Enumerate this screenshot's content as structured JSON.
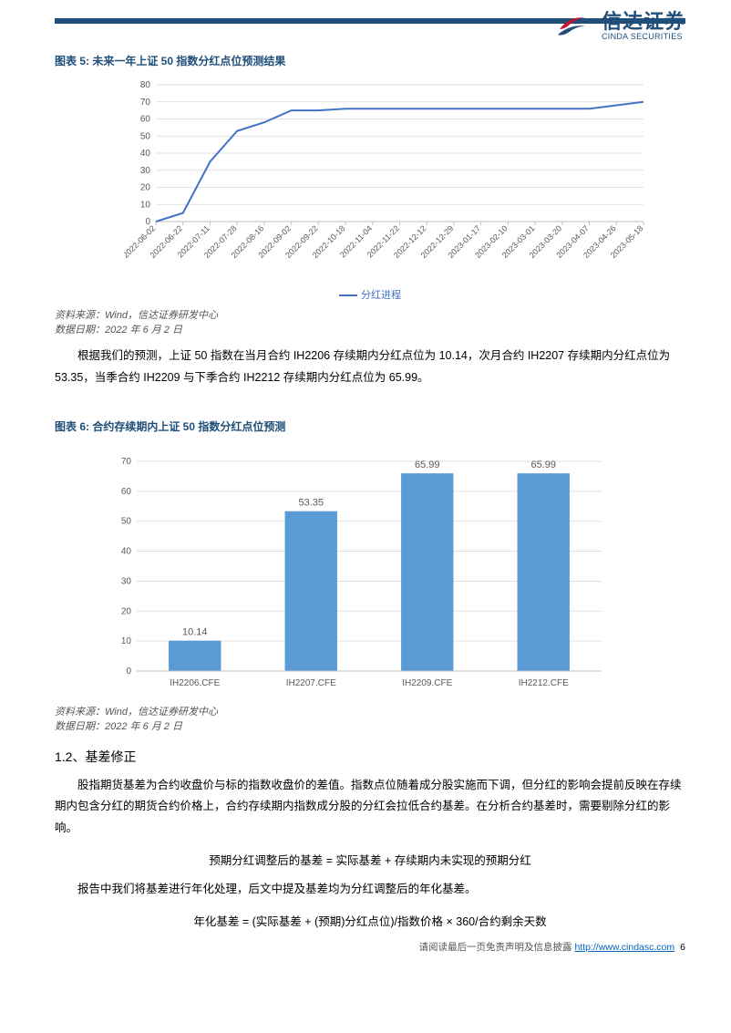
{
  "brand": {
    "name": "信达证券",
    "sub": "CINDA SECURITIES"
  },
  "fig5": {
    "title_prefix": "图表 5: ",
    "title": "未来一年上证 50 指数分红点位预测结果",
    "type": "line",
    "x_labels": [
      "2022-06-02",
      "2022-06-22",
      "2022-07-11",
      "2022-07-28",
      "2022-08-16",
      "2022-09-02",
      "2022-09-22",
      "2022-10-18",
      "2022-11-04",
      "2022-11-22",
      "2022-12-12",
      "2022-12-29",
      "2023-01-17",
      "2023-02-10",
      "2023-03-01",
      "2023-03-20",
      "2023-04-07",
      "2023-04-26",
      "2023-05-18"
    ],
    "values": [
      0,
      5,
      35,
      53,
      58,
      65,
      65,
      66,
      66,
      66,
      66,
      66,
      66,
      66,
      66,
      66,
      66,
      68,
      70
    ],
    "ylim": [
      0,
      80
    ],
    "ytick_step": 10,
    "line_color": "#4472c4",
    "grid_color": "#d9d9d9",
    "axis_color": "#bfbfbf",
    "tick_color": "#595959",
    "label_fontsize": 10,
    "legend": "分红进程",
    "source": "资料来源：Wind，信达证券研发中心",
    "date": "数据日期：2022 年 6 月 2 日"
  },
  "para1": "根据我们的预测，上证 50 指数在当月合约 IH2206 存续期内分红点位为 10.14，次月合约 IH2207 存续期内分红点位为 53.35，当季合约 IH2209 与下季合约 IH2212 存续期内分红点位为 65.99。",
  "fig6": {
    "title_prefix": "图表 6: ",
    "title": "合约存续期内上证 50 指数分红点位预测",
    "type": "bar",
    "categories": [
      "IH2206.CFE",
      "IH2207.CFE",
      "IH2209.CFE",
      "IH2212.CFE"
    ],
    "values": [
      10.14,
      53.35,
      65.99,
      65.99
    ],
    "value_labels": [
      "10.14",
      "53.35",
      "65.99",
      "65.99"
    ],
    "bar_color": "#5b9bd5",
    "label_color": "#595959",
    "ylim": [
      0,
      70
    ],
    "ytick_step": 10,
    "bar_width": 0.45,
    "grid_color": "#d9d9d9",
    "axis_color": "#bfbfbf",
    "source": "资料来源：Wind，信达证券研发中心",
    "date": "数据日期：2022 年 6 月 2 日"
  },
  "section": {
    "num": "1.2、",
    "title": "基差修正"
  },
  "para2": "股指期货基差为合约收盘价与标的指数收盘价的差值。指数点位随着成分股实施而下调，但分红的影响会提前反映在存续期内包含分红的期货合约价格上，合约存续期内指数成分股的分红会拉低合约基差。在分析合约基差时，需要剔除分红的影响。",
  "formula1": "预期分红调整后的基差 = 实际基差 + 存续期内未实现的预期分红",
  "para3": "报告中我们将基差进行年化处理，后文中提及基差均为分红调整后的年化基差。",
  "formula2": "年化基差 = (实际基差 + (预期)分红点位)/指数价格 × 360/合约剩余天数",
  "footer": {
    "text": "请阅读最后一页免责声明及信息披露 ",
    "url": "http://www.cindasc.com",
    "page": "6"
  }
}
